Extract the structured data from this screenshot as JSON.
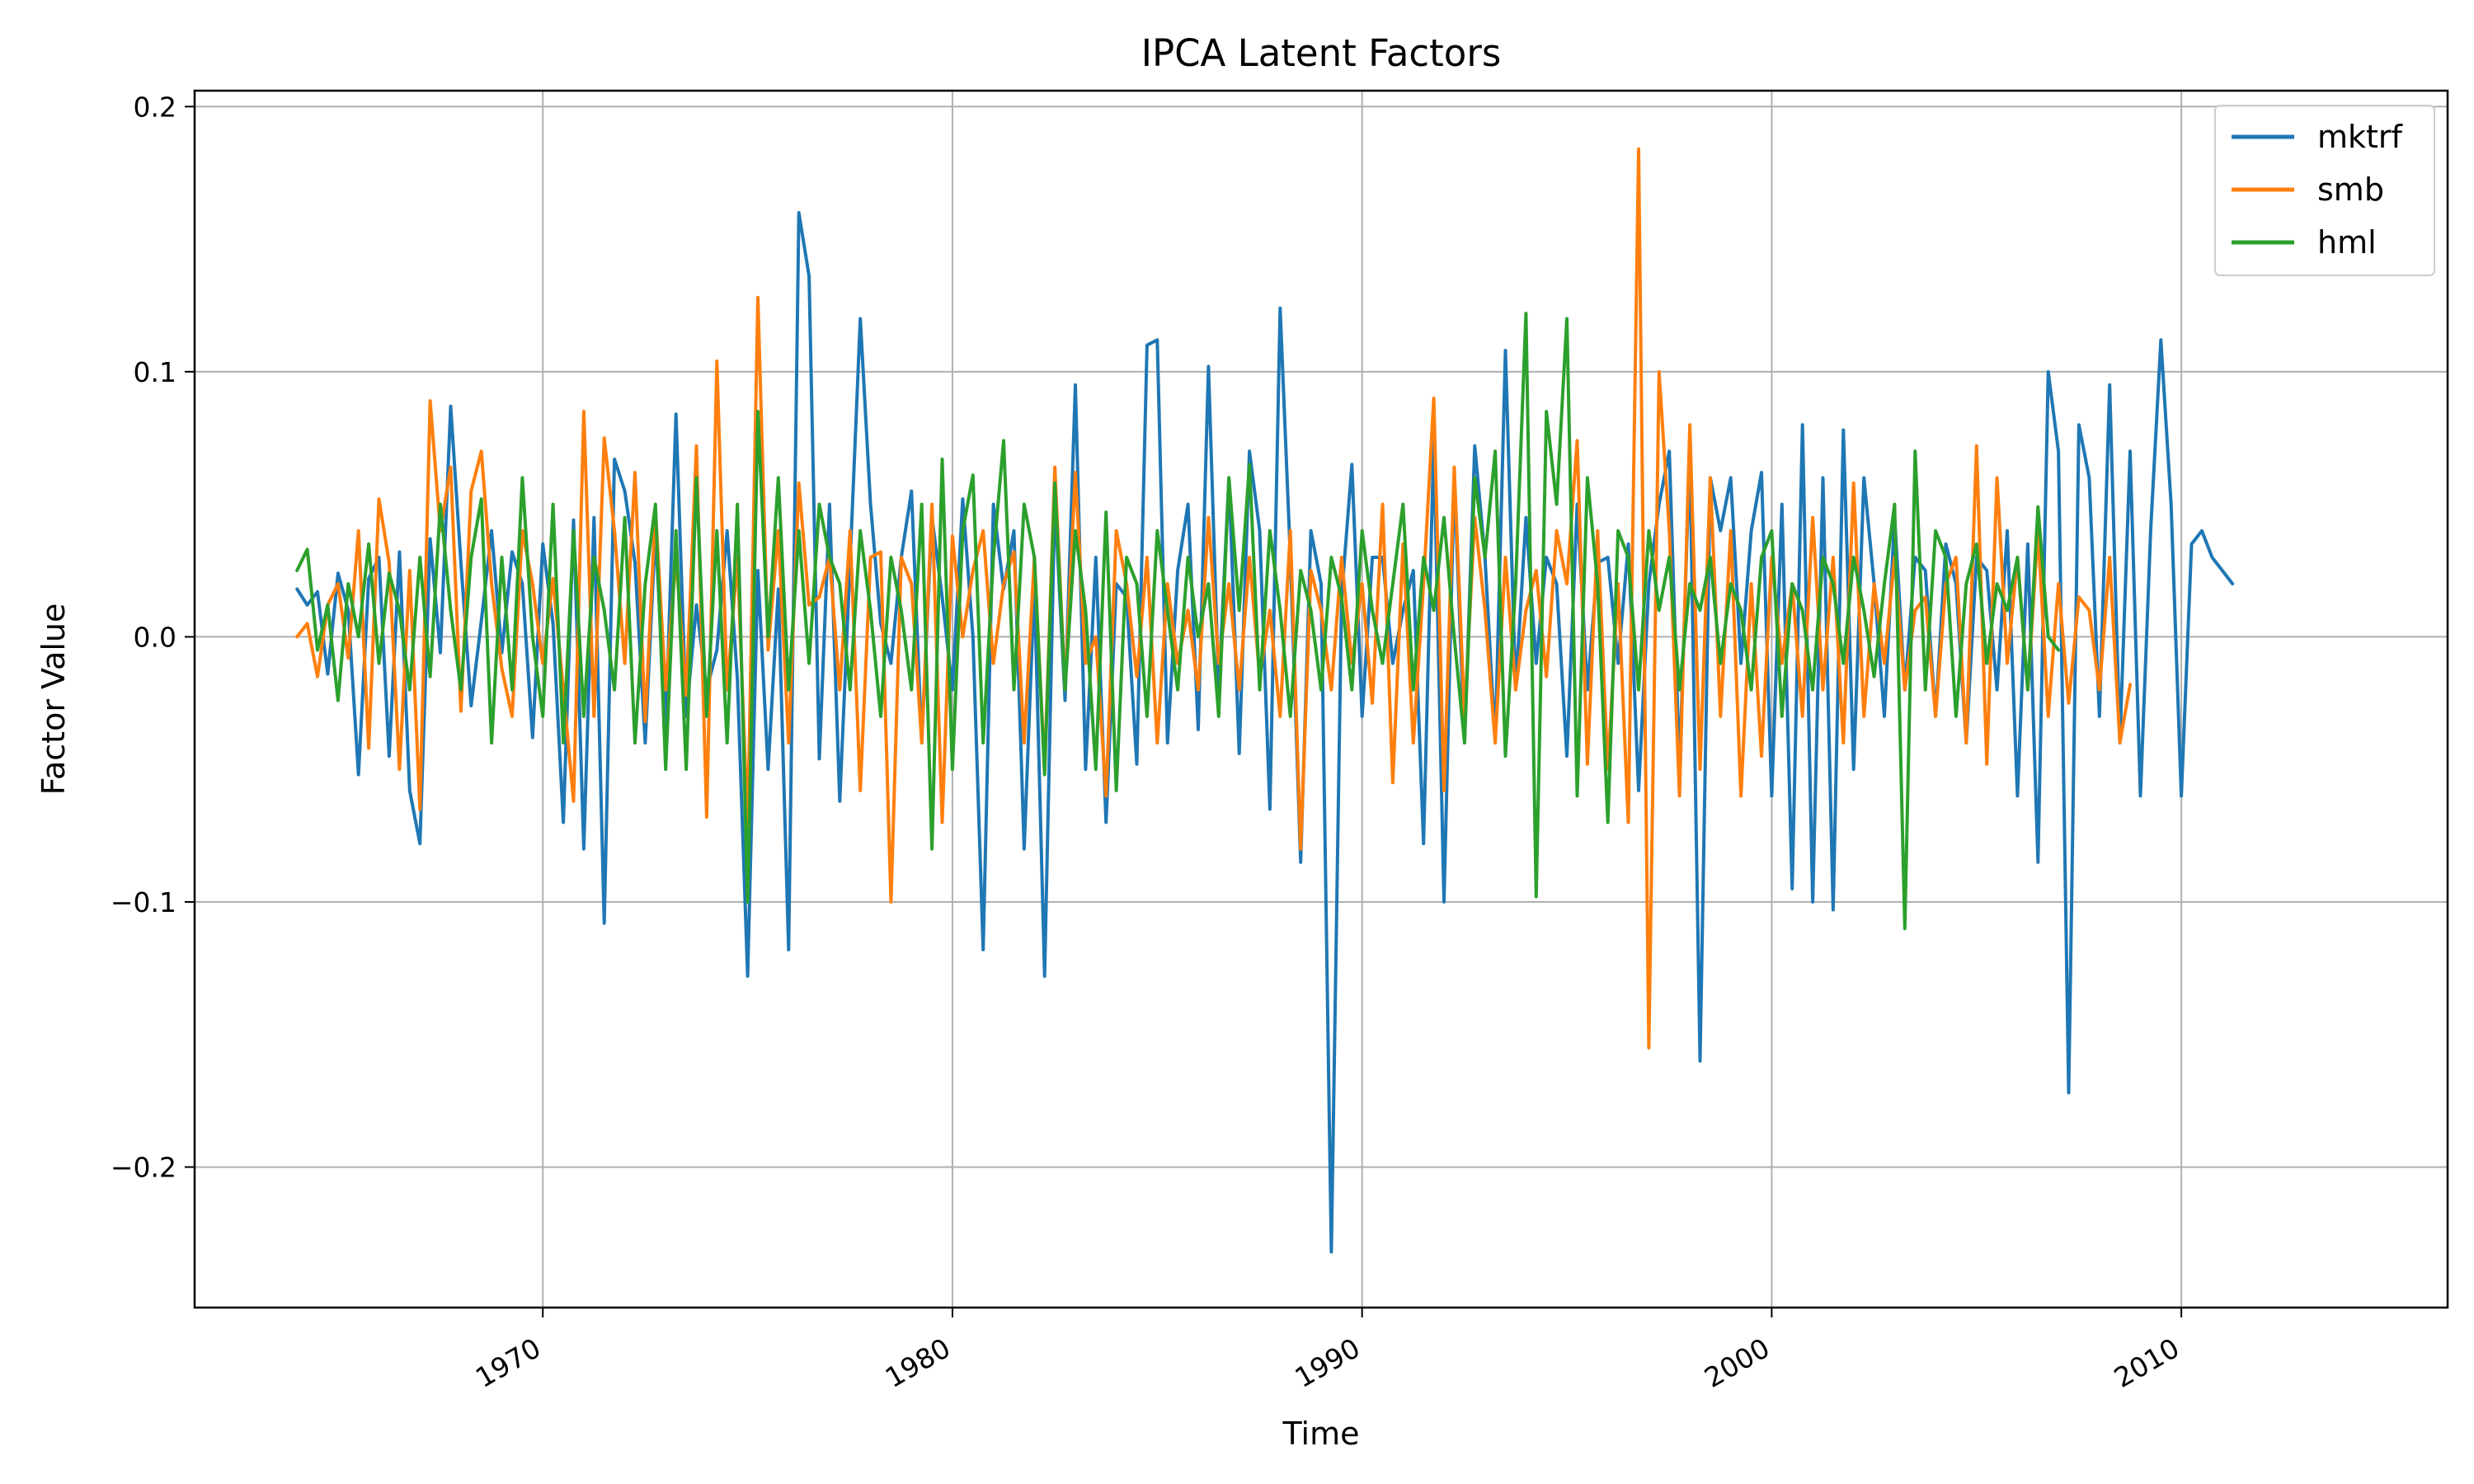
{
  "chart_data": {
    "type": "line",
    "title": "IPCA Latent Factors",
    "xlabel": "Time",
    "ylabel": "Factor Value",
    "xlim": [
      1961.5,
      2016.5
    ],
    "ylim": [
      -0.253,
      0.206
    ],
    "xticks": [
      1970,
      1980,
      1990,
      2000,
      2010
    ],
    "yticks": [
      -0.2,
      -0.1,
      0.0,
      0.1,
      0.2
    ],
    "ytick_labels": [
      "−0.2",
      "−0.1",
      "0.0",
      "0.1",
      "0.2"
    ],
    "grid": true,
    "legend_position": "top-right",
    "colors": {
      "mktrf": "#1f77b4",
      "smb": "#ff7f0e",
      "hml": "#2ca02c"
    },
    "x_start_year": 1964.0,
    "x_step_years": 0.25,
    "series": [
      {
        "name": "mktrf",
        "values": [
          0.018,
          0.012,
          0.017,
          -0.014,
          0.024,
          0.01,
          -0.052,
          0.022,
          0.03,
          -0.045,
          0.032,
          -0.058,
          -0.078,
          0.037,
          -0.006,
          0.087,
          0.028,
          -0.026,
          0.006,
          0.04,
          -0.006,
          0.032,
          0.02,
          -0.038,
          0.035,
          0.005,
          -0.07,
          0.044,
          -0.08,
          0.045,
          -0.108,
          0.067,
          0.055,
          0.028,
          -0.04,
          0.04,
          -0.035,
          0.084,
          -0.03,
          0.012,
          -0.02,
          -0.005,
          0.04,
          -0.016,
          -0.128,
          0.025,
          -0.05,
          0.018,
          -0.118,
          0.16,
          0.136,
          -0.046,
          0.05,
          -0.062,
          0.028,
          0.12,
          0.05,
          0.005,
          -0.01,
          0.03,
          0.055,
          -0.04,
          0.045,
          0.015,
          -0.02,
          0.052,
          0.0,
          -0.118,
          0.05,
          0.018,
          0.04,
          -0.08,
          0.02,
          -0.128,
          0.052,
          -0.024,
          0.095,
          -0.05,
          0.03,
          -0.07,
          0.02,
          0.015,
          -0.048,
          0.11,
          0.112,
          -0.04,
          0.025,
          0.05,
          -0.035,
          0.102,
          -0.02,
          0.06,
          -0.044,
          0.07,
          0.04,
          -0.065,
          0.124,
          0.03,
          -0.085,
          0.04,
          0.02,
          -0.232,
          0.015,
          0.065,
          -0.03,
          0.03,
          0.03,
          -0.01,
          0.01,
          0.025,
          -0.078,
          0.074,
          -0.1,
          0.06,
          -0.04,
          0.072,
          0.03,
          -0.04,
          0.108,
          -0.02,
          0.045,
          -0.01,
          0.03,
          0.02,
          -0.045,
          0.05,
          -0.02,
          0.028,
          0.03,
          -0.01,
          0.035,
          -0.058,
          0.02,
          0.05,
          0.07,
          -0.05,
          0.07,
          -0.16,
          0.06,
          0.04,
          0.06,
          -0.01,
          0.04,
          0.062,
          -0.06,
          0.05,
          -0.095,
          0.08,
          -0.1,
          0.06,
          -0.103,
          0.078,
          -0.05,
          0.06,
          0.02,
          -0.03,
          0.045,
          -0.02,
          0.03,
          0.025,
          -0.03,
          0.035,
          0.02,
          -0.04,
          0.03,
          0.025,
          -0.02,
          0.04,
          -0.06,
          0.035,
          -0.085,
          0.1,
          0.07,
          -0.172,
          0.08,
          0.06,
          -0.03,
          0.095,
          -0.04,
          0.07,
          -0.06,
          0.04,
          0.112,
          0.05,
          -0.06,
          0.035,
          0.04,
          0.03,
          0.025,
          0.02
        ],
        "color": "#1f77b4"
      },
      {
        "name": "smb",
        "values": [
          0.0,
          0.005,
          -0.015,
          0.012,
          0.02,
          -0.008,
          0.04,
          -0.042,
          0.052,
          0.028,
          -0.05,
          0.025,
          -0.065,
          0.089,
          0.04,
          0.064,
          -0.028,
          0.055,
          0.07,
          0.02,
          -0.012,
          -0.03,
          0.04,
          0.02,
          -0.01,
          0.022,
          -0.02,
          -0.062,
          0.085,
          -0.03,
          0.075,
          0.04,
          -0.01,
          0.062,
          -0.032,
          0.048,
          -0.02,
          0.03,
          -0.022,
          0.072,
          -0.068,
          0.104,
          -0.02,
          0.03,
          -0.072,
          0.128,
          -0.005,
          0.04,
          -0.04,
          0.058,
          0.012,
          0.015,
          0.03,
          -0.02,
          0.04,
          -0.058,
          0.03,
          0.032,
          -0.1,
          0.03,
          0.02,
          -0.04,
          0.05,
          -0.07,
          0.038,
          0.0,
          0.025,
          0.04,
          -0.01,
          0.02,
          0.032,
          -0.04,
          0.03,
          -0.05,
          0.064,
          -0.02,
          0.062,
          -0.01,
          0.0,
          -0.06,
          0.04,
          0.02,
          -0.015,
          0.03,
          -0.04,
          0.02,
          -0.01,
          0.01,
          -0.02,
          0.045,
          -0.01,
          0.02,
          -0.02,
          0.03,
          -0.015,
          0.01,
          -0.03,
          0.04,
          -0.08,
          0.025,
          0.01,
          -0.02,
          0.03,
          -0.01,
          0.02,
          -0.025,
          0.05,
          -0.055,
          0.035,
          -0.04,
          0.02,
          0.09,
          -0.058,
          0.064,
          -0.03,
          0.045,
          0.01,
          -0.04,
          0.03,
          -0.02,
          0.01,
          0.025,
          -0.015,
          0.04,
          0.02,
          0.074,
          -0.048,
          0.04,
          -0.05,
          0.02,
          -0.07,
          0.184,
          -0.155,
          0.1,
          0.04,
          -0.06,
          0.08,
          -0.05,
          0.06,
          -0.03,
          0.04,
          -0.06,
          0.02,
          -0.045,
          0.03,
          -0.01,
          0.02,
          -0.03,
          0.045,
          -0.02,
          0.03,
          -0.04,
          0.058,
          -0.03,
          0.02,
          -0.01,
          0.03,
          -0.02,
          0.01,
          0.015,
          -0.03,
          0.02,
          0.03,
          -0.04,
          0.072,
          -0.048,
          0.06,
          -0.01,
          0.03,
          -0.02,
          0.04,
          -0.03,
          0.02,
          -0.025,
          0.015,
          0.01,
          -0.02,
          0.03,
          -0.04,
          -0.018
        ],
        "color": "#ff7f0e"
      },
      {
        "name": "hml",
        "values": [
          0.025,
          0.033,
          -0.005,
          0.012,
          -0.024,
          0.02,
          0.0,
          0.035,
          -0.01,
          0.024,
          0.01,
          -0.02,
          0.03,
          -0.015,
          0.05,
          0.01,
          -0.02,
          0.03,
          0.052,
          -0.04,
          0.03,
          -0.02,
          0.06,
          0.0,
          -0.03,
          0.05,
          -0.04,
          0.04,
          -0.03,
          0.03,
          0.01,
          -0.02,
          0.045,
          -0.04,
          0.02,
          0.05,
          -0.05,
          0.04,
          -0.05,
          0.06,
          -0.03,
          0.04,
          -0.04,
          0.05,
          -0.1,
          0.085,
          0.0,
          0.06,
          -0.02,
          0.04,
          -0.01,
          0.05,
          0.03,
          0.02,
          -0.02,
          0.04,
          0.01,
          -0.03,
          0.03,
          0.01,
          -0.02,
          0.05,
          -0.08,
          0.067,
          -0.05,
          0.04,
          0.061,
          -0.04,
          0.03,
          0.074,
          -0.02,
          0.05,
          0.03,
          -0.052,
          0.058,
          -0.02,
          0.04,
          0.01,
          -0.05,
          0.047,
          -0.058,
          0.03,
          0.02,
          -0.03,
          0.04,
          0.01,
          -0.02,
          0.03,
          0.0,
          0.02,
          -0.03,
          0.06,
          0.01,
          0.065,
          -0.02,
          0.04,
          0.01,
          -0.03,
          0.025,
          0.01,
          -0.02,
          0.03,
          0.015,
          -0.02,
          0.04,
          0.01,
          -0.01,
          0.02,
          0.05,
          -0.02,
          0.03,
          0.01,
          0.045,
          0.0,
          -0.04,
          0.06,
          0.03,
          0.07,
          -0.045,
          0.02,
          0.122,
          -0.098,
          0.085,
          0.05,
          0.12,
          -0.06,
          0.06,
          0.02,
          -0.07,
          0.04,
          0.03,
          -0.02,
          0.04,
          0.01,
          0.03,
          -0.02,
          0.02,
          0.01,
          0.03,
          -0.01,
          0.02,
          0.01,
          -0.02,
          0.03,
          0.04,
          -0.03,
          0.02,
          0.01,
          -0.02,
          0.03,
          0.02,
          -0.01,
          0.03,
          0.01,
          -0.015,
          0.02,
          0.05,
          -0.11,
          0.07,
          -0.02,
          0.04,
          0.03,
          -0.03,
          0.02,
          0.035,
          -0.01,
          0.02,
          0.01,
          0.03,
          -0.02,
          0.049,
          0.0,
          -0.005
        ],
        "color": "#2ca02c"
      }
    ]
  }
}
